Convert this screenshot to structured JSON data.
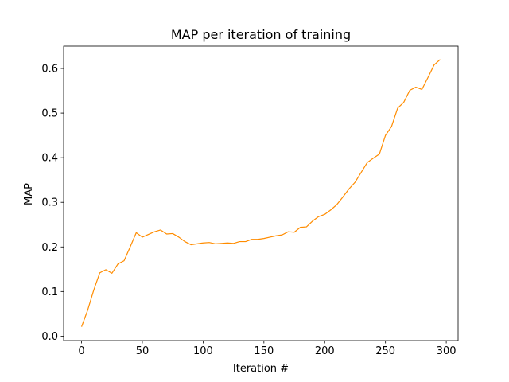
{
  "chart_data": {
    "type": "line",
    "title": "MAP per iteration of training",
    "xlabel": "Iteration #",
    "ylabel": "MAP",
    "xlim": [
      -14.75,
      309.75
    ],
    "ylim": [
      -0.01,
      0.65
    ],
    "xticks": [
      0,
      50,
      100,
      150,
      200,
      250,
      300
    ],
    "xtick_labels": [
      "0",
      "50",
      "100",
      "150",
      "200",
      "250",
      "300"
    ],
    "yticks": [
      0.0,
      0.1,
      0.2,
      0.3,
      0.4,
      0.5,
      0.6
    ],
    "ytick_labels": [
      "0.0",
      "0.1",
      "0.2",
      "0.3",
      "0.4",
      "0.5",
      "0.6"
    ],
    "grid": false,
    "series": [
      {
        "color": "#ff8c00",
        "x": [
          0,
          5,
          10,
          15,
          20,
          25,
          30,
          35,
          40,
          45,
          50,
          55,
          60,
          65,
          70,
          75,
          80,
          85,
          90,
          95,
          100,
          105,
          110,
          115,
          120,
          125,
          130,
          135,
          140,
          145,
          150,
          155,
          160,
          165,
          170,
          175,
          180,
          185,
          190,
          195,
          200,
          205,
          210,
          215,
          220,
          225,
          230,
          235,
          240,
          245,
          250,
          255,
          260,
          265,
          270,
          275,
          280,
          285,
          290,
          295
        ],
        "values": [
          0.021,
          0.058,
          0.103,
          0.142,
          0.149,
          0.141,
          0.162,
          0.169,
          0.2,
          0.232,
          0.222,
          0.228,
          0.234,
          0.238,
          0.229,
          0.23,
          0.222,
          0.212,
          0.205,
          0.207,
          0.209,
          0.21,
          0.207,
          0.208,
          0.209,
          0.208,
          0.212,
          0.212,
          0.217,
          0.217,
          0.219,
          0.222,
          0.225,
          0.227,
          0.234,
          0.233,
          0.244,
          0.245,
          0.258,
          0.268,
          0.273,
          0.283,
          0.295,
          0.312,
          0.33,
          0.345,
          0.367,
          0.389,
          0.399,
          0.408,
          0.45,
          0.47,
          0.511,
          0.524,
          0.551,
          0.558,
          0.553,
          0.58,
          0.608,
          0.62
        ]
      }
    ]
  }
}
